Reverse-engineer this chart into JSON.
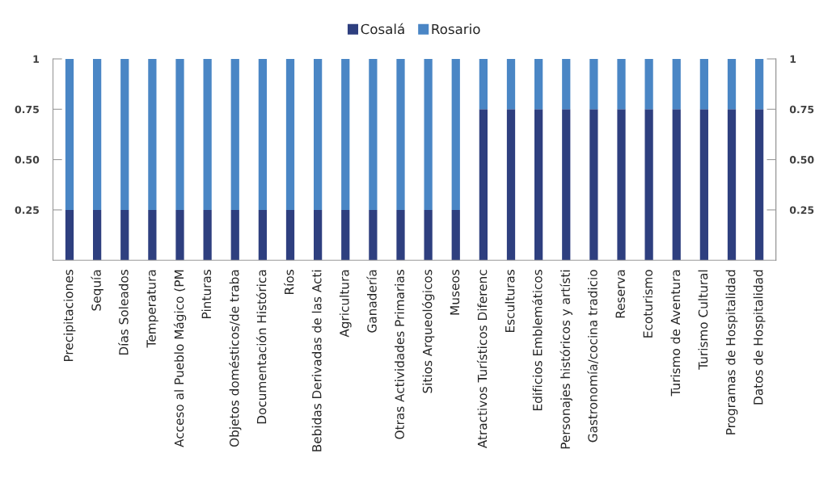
{
  "chart_data": {
    "type": "bar",
    "stacked": true,
    "categories": [
      "Precipitaciones",
      "Sequía",
      "Días Soleados",
      "Temperatura",
      "Acceso al Pueblo Mágico (PM",
      "Pinturas",
      "Objetos domésticos/de traba",
      "Documentación Histórica",
      "Ríos",
      "Bebidas Derivadas de las Acti",
      "Agricultura",
      "Ganadería",
      "Otras Actividades Primarias",
      "Sitios Arqueológicos",
      "Museos",
      "Atractivos Turísticos Diferenc",
      "Esculturas",
      "Edificios Emblemáticos",
      "Personajes históricos y artísti",
      "Gastronomía/cocina tradicio",
      "Reserva",
      "Ecoturismo",
      "Turismo de Aventura",
      "Turismo Cultural",
      "Programas de Hospitalidad",
      "Datos de Hospitalidad"
    ],
    "series": [
      {
        "name": "Cosalá",
        "color": "#2e3f7f",
        "values": [
          0.25,
          0.25,
          0.25,
          0.25,
          0.25,
          0.25,
          0.25,
          0.25,
          0.25,
          0.25,
          0.25,
          0.25,
          0.25,
          0.25,
          0.25,
          0.75,
          0.75,
          0.75,
          0.75,
          0.75,
          0.75,
          0.75,
          0.75,
          0.75,
          0.75,
          0.75
        ]
      },
      {
        "name": "Rosario",
        "color": "#4a86c5",
        "values": [
          0.75,
          0.75,
          0.75,
          0.75,
          0.75,
          0.75,
          0.75,
          0.75,
          0.75,
          0.75,
          0.75,
          0.75,
          0.75,
          0.75,
          0.75,
          0.25,
          0.25,
          0.25,
          0.25,
          0.25,
          0.25,
          0.25,
          0.25,
          0.25,
          0.25,
          0.25
        ]
      }
    ],
    "ylim": [
      0,
      1
    ],
    "yticks": [
      0.25,
      {
        "value": 0.5,
        "label": "0.50"
      },
      0.75,
      1
    ],
    "y2lim": [
      0,
      1
    ],
    "y2ticks": [
      0.25,
      {
        "value": 0.5,
        "label": "0.50"
      },
      0.75,
      1
    ],
    "grid": false,
    "legend": "top"
  }
}
